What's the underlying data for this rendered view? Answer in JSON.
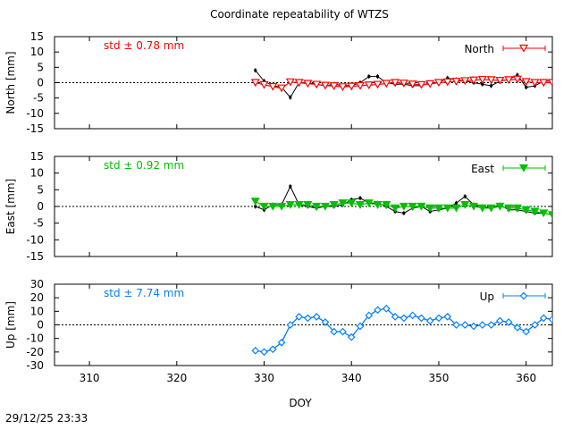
{
  "chart_data": {
    "title": "Coordinate repeatability of WTZS",
    "xlabel": "DOY",
    "xlim": [
      306,
      363
    ],
    "xticks": [
      310,
      320,
      330,
      340,
      350,
      360
    ],
    "timestamp": "29/12/25 23:33",
    "panels": [
      {
        "type": "line",
        "name": "north",
        "ylabel": "North [mm]",
        "ylim": [
          -15,
          15
        ],
        "yticks": [
          15,
          10,
          5,
          0,
          -5,
          -10,
          -15
        ],
        "color": "#ff0000",
        "marker": "triangle-down-open",
        "legend": "North",
        "std_label": "std ± 0.78 mm",
        "x": [
          329,
          330,
          331,
          332,
          333,
          334,
          335,
          336,
          337,
          338,
          339,
          340,
          341,
          342,
          343,
          344,
          345,
          346,
          347,
          348,
          349,
          350,
          351,
          352,
          353,
          354,
          355,
          356,
          357,
          358,
          359,
          360,
          361,
          362,
          363
        ],
        "raw": [
          4,
          0.5,
          -1,
          -1.5,
          -4.8,
          0,
          0,
          -0.5,
          -1,
          -0.5,
          -1,
          -1,
          0,
          2,
          2,
          0,
          -0.5,
          -0.5,
          -1,
          -1,
          0,
          0,
          1.5,
          1,
          0.5,
          0,
          -0.5,
          -1,
          0.5,
          1,
          2.5,
          -1.5,
          -1,
          0.5,
          0.5
        ],
        "model": [
          0,
          -0.7,
          -1.3,
          -1.8,
          0.2,
          0,
          -0.3,
          -0.6,
          -0.9,
          -1.1,
          -1.4,
          -1.2,
          -1,
          -0.8,
          -0.6,
          -0.3,
          0,
          -0.2,
          -0.5,
          -0.7,
          -0.4,
          0,
          0.2,
          0.4,
          0.6,
          0.8,
          1,
          0.9,
          0.7,
          0.9,
          1.1,
          0.3,
          0,
          0,
          0
        ]
      },
      {
        "type": "line",
        "name": "east",
        "ylabel": "East [mm]",
        "ylim": [
          -15,
          15
        ],
        "yticks": [
          15,
          10,
          5,
          0,
          -5,
          -10,
          -15
        ],
        "color": "#00c000",
        "marker": "triangle-down-filled",
        "legend": "East",
        "std_label": "std ± 0.92 mm",
        "x": [
          329,
          330,
          331,
          332,
          333,
          334,
          335,
          336,
          337,
          338,
          339,
          340,
          341,
          342,
          343,
          344,
          345,
          346,
          347,
          348,
          349,
          350,
          351,
          352,
          353,
          354,
          355,
          356,
          357,
          358,
          359,
          360,
          361,
          362,
          363
        ],
        "raw": [
          0,
          -1,
          0.5,
          0.5,
          6,
          0.5,
          0,
          -0.5,
          0,
          0,
          0.5,
          2,
          2.5,
          1,
          1,
          0,
          -1.5,
          -2,
          -0.5,
          0,
          -1.5,
          -1,
          -0.5,
          1,
          3,
          0.5,
          0,
          -0.5,
          0.5,
          -1,
          -1,
          -1.5,
          -2,
          -2,
          -2.5
        ],
        "model": [
          1.5,
          0,
          0,
          0,
          0.5,
          0.5,
          0.5,
          0,
          0,
          0.5,
          1,
          1,
          0.5,
          1,
          0.5,
          0.5,
          -0.5,
          0,
          0,
          0,
          -0.5,
          -0.5,
          -0.5,
          -0.5,
          0.5,
          0,
          -0.5,
          -0.5,
          0,
          -0.5,
          -0.5,
          -1,
          -1.5,
          -2,
          -2.5
        ]
      },
      {
        "type": "line",
        "name": "up",
        "ylabel": "Up [mm]",
        "ylim": [
          -30,
          30
        ],
        "yticks": [
          30,
          20,
          10,
          0,
          -10,
          -20,
          -30
        ],
        "color": "#0080ff",
        "marker": "diamond-open",
        "legend": "Up",
        "std_label": "std ± 7.74 mm",
        "x": [
          329,
          330,
          331,
          332,
          333,
          334,
          335,
          336,
          337,
          338,
          339,
          340,
          341,
          342,
          343,
          344,
          345,
          346,
          347,
          348,
          349,
          350,
          351,
          352,
          353,
          354,
          355,
          356,
          357,
          358,
          359,
          360,
          361,
          362,
          363
        ],
        "raw": [
          -19,
          -20,
          -18,
          -13,
          0,
          6,
          5,
          6,
          2,
          -5,
          -5,
          -9,
          -1,
          7,
          11,
          12,
          6,
          5,
          7,
          5,
          3,
          5,
          6,
          0,
          0,
          -1,
          0,
          0,
          3,
          2,
          -2,
          -5,
          0,
          5,
          4
        ],
        "model": [
          -19,
          -20,
          -18,
          -13,
          0,
          6,
          5,
          6,
          2,
          -5,
          -5,
          -9,
          -1,
          7,
          11,
          12,
          6,
          5,
          7,
          5,
          3,
          5,
          6,
          0,
          0,
          -1,
          0,
          0,
          3,
          2,
          -2,
          -5,
          0,
          5,
          4
        ]
      }
    ]
  }
}
